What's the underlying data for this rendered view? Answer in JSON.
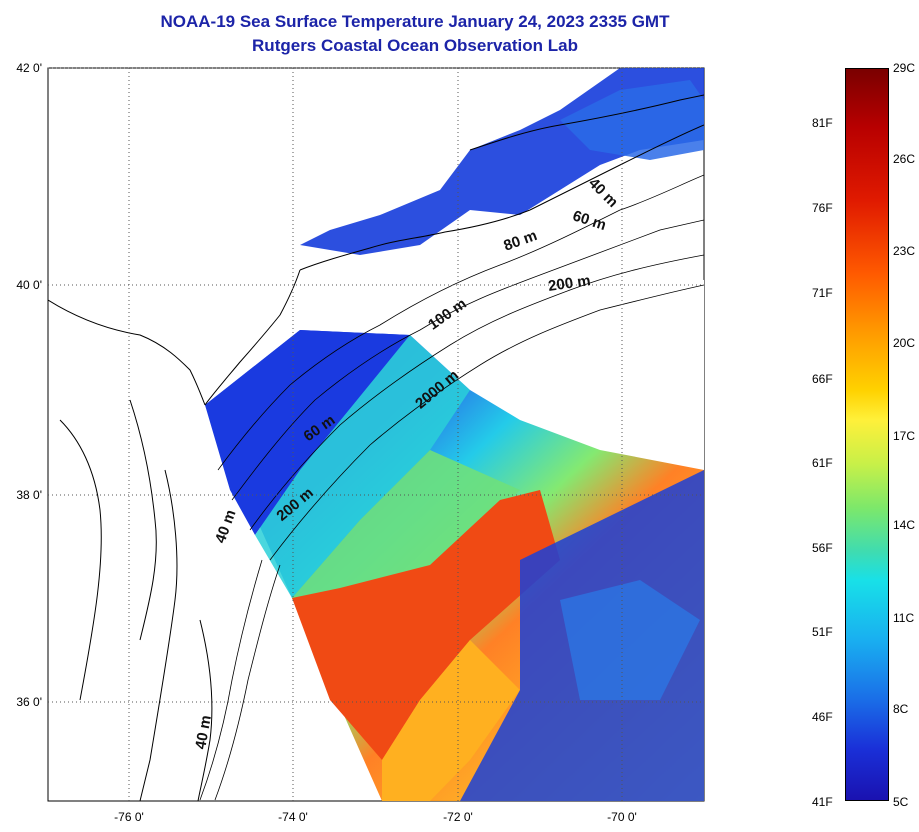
{
  "title": {
    "line1": "NOAA-19 Sea Surface Temperature January 24, 2023 2335 GMT",
    "line2": "Rutgers Coastal Ocean Observation Lab"
  },
  "axes": {
    "lat_labels": [
      "42 0'",
      "40 0'",
      "38 0'",
      "36 0'"
    ],
    "lon_labels": [
      "-76 0'",
      "-74 0'",
      "-72 0'",
      "-70 0'"
    ]
  },
  "depth_labels": [
    "40 m",
    "60 m",
    "80 m",
    "200 m",
    "100 m",
    "2000 m",
    "60 m",
    "200 m",
    "40 m",
    "40 m"
  ],
  "colorbar": {
    "fahrenheit": [
      "81F",
      "76F",
      "71F",
      "66F",
      "61F",
      "56F",
      "51F",
      "46F",
      "41F"
    ],
    "celsius": [
      "29C",
      "26C",
      "23C",
      "20C",
      "17C",
      "14C",
      "11C",
      "8C",
      "5C"
    ]
  },
  "colors": {
    "title": "#1c24a8",
    "cold": "#1a30d8",
    "cool": "#18c8e8",
    "mild": "#7de86a",
    "warm": "#ff6a1a",
    "hot": "#e8340a"
  }
}
